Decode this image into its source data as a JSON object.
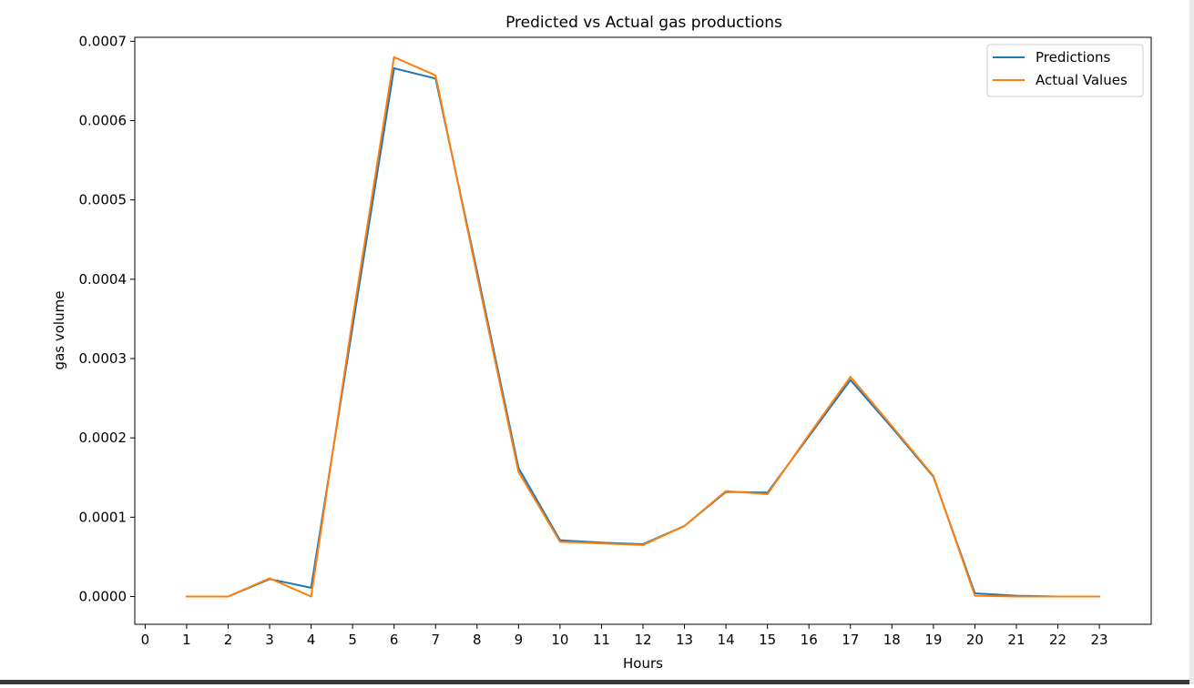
{
  "chart_data": {
    "type": "line",
    "title": "Predicted vs Actual gas productions",
    "xlabel": "Hours",
    "ylabel": "gas volume",
    "xlim": [
      -0.25,
      24.25
    ],
    "ylim": [
      -3.5e-05,
      0.000705
    ],
    "xticks": [
      0,
      1,
      2,
      3,
      4,
      5,
      6,
      7,
      8,
      9,
      10,
      11,
      12,
      13,
      14,
      15,
      16,
      17,
      18,
      19,
      20,
      21,
      22,
      23
    ],
    "xtick_labels": [
      "0",
      "1",
      "2",
      "3",
      "4",
      "5",
      "6",
      "7",
      "8",
      "9",
      "10",
      "11",
      "12",
      "13",
      "14",
      "15",
      "16",
      "17",
      "18",
      "19",
      "20",
      "21",
      "22",
      "23"
    ],
    "yticks": [
      0,
      0.0001,
      0.0002,
      0.0003,
      0.0004,
      0.0005,
      0.0006,
      0.0007
    ],
    "ytick_labels": [
      "0.0000",
      "0.0001",
      "0.0002",
      "0.0003",
      "0.0004",
      "0.0005",
      "0.0006",
      "0.0007"
    ],
    "grid": false,
    "legend_position": "top-right",
    "x": [
      1,
      2,
      3,
      4,
      5,
      6,
      7,
      8,
      9,
      10,
      11,
      12,
      13,
      14,
      15,
      16,
      17,
      18,
      19,
      20,
      21,
      22,
      23
    ],
    "series": [
      {
        "name": "Predictions",
        "color": "#1f77b4",
        "values": [
          0.0,
          0.0,
          2.2e-05,
          1.1e-05,
          0.00034,
          0.000666,
          0.000653,
          0.00041,
          0.000162,
          7.1e-05,
          6.8e-05,
          6.6e-05,
          8.9e-05,
          0.000132,
          0.000131,
          0.000202,
          0.000273,
          0.000213,
          0.000151,
          4e-06,
          1e-06,
          0.0,
          0.0
        ]
      },
      {
        "name": "Actual Values",
        "color": "#ff7f0e",
        "values": [
          0.0,
          0.0,
          2.3e-05,
          0.0,
          0.00035,
          0.00068,
          0.000657,
          0.000405,
          0.000157,
          6.9e-05,
          6.7e-05,
          6.5e-05,
          8.9e-05,
          0.000133,
          0.000129,
          0.000204,
          0.000277,
          0.000215,
          0.000152,
          1e-06,
          0.0,
          0.0,
          0.0
        ]
      }
    ]
  }
}
